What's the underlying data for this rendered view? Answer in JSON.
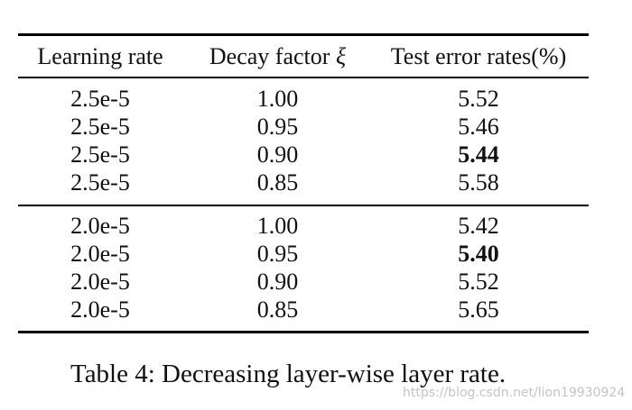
{
  "table": {
    "headers": {
      "learning_rate": "Learning rate",
      "decay_factor_prefix": "Decay factor",
      "decay_factor_symbol": "ξ",
      "test_error": "Test error rates(%)"
    },
    "groups": [
      {
        "rows": [
          {
            "learning_rate": "2.5e-5",
            "decay_factor": "1.00",
            "test_error": "5.52",
            "best": false
          },
          {
            "learning_rate": "2.5e-5",
            "decay_factor": "0.95",
            "test_error": "5.46",
            "best": false
          },
          {
            "learning_rate": "2.5e-5",
            "decay_factor": "0.90",
            "test_error": "5.44",
            "best": true
          },
          {
            "learning_rate": "2.5e-5",
            "decay_factor": "0.85",
            "test_error": "5.58",
            "best": false
          }
        ]
      },
      {
        "rows": [
          {
            "learning_rate": "2.0e-5",
            "decay_factor": "1.00",
            "test_error": "5.42",
            "best": false
          },
          {
            "learning_rate": "2.0e-5",
            "decay_factor": "0.95",
            "test_error": "5.40",
            "best": true
          },
          {
            "learning_rate": "2.0e-5",
            "decay_factor": "0.90",
            "test_error": "5.52",
            "best": false
          },
          {
            "learning_rate": "2.0e-5",
            "decay_factor": "0.85",
            "test_error": "5.65",
            "best": false
          }
        ]
      }
    ]
  },
  "caption": "Table 4: Decreasing layer-wise layer rate.",
  "watermark": "https://blog.csdn.net/lion19930924"
}
